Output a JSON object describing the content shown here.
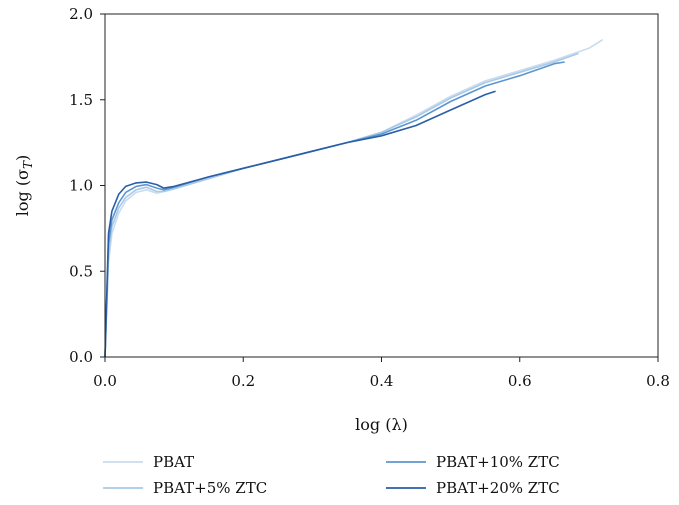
{
  "chart_data": {
    "type": "line",
    "xlabel": "log (λ)",
    "ylabel": "log (σT)",
    "ylabel_main": "log (σ",
    "ylabel_sub": "T",
    "ylabel_close": ")",
    "xlim": [
      0.0,
      0.8
    ],
    "ylim": [
      0.0,
      2.0
    ],
    "x_ticks": [
      0.0,
      0.2,
      0.4,
      0.6,
      0.8
    ],
    "x_tick_labels": [
      "0.0",
      "0.2",
      "0.4",
      "0.6",
      "0.8"
    ],
    "y_ticks": [
      0.0,
      0.5,
      1.0,
      1.5,
      2.0
    ],
    "y_tick_labels": [
      "0.0",
      "0.5",
      "1.0",
      "1.5",
      "2.0"
    ],
    "grid": false,
    "legend_position": "bottom",
    "series": [
      {
        "name": "PBAT",
        "color": "#c9dcef",
        "x": [
          0.0,
          0.005,
          0.01,
          0.02,
          0.03,
          0.045,
          0.06,
          0.075,
          0.085,
          0.1,
          0.15,
          0.2,
          0.25,
          0.3,
          0.35,
          0.4,
          0.45,
          0.5,
          0.55,
          0.6,
          0.65,
          0.7,
          0.72
        ],
        "y": [
          0.0,
          0.55,
          0.72,
          0.84,
          0.91,
          0.96,
          0.975,
          0.955,
          0.965,
          0.98,
          1.04,
          1.1,
          1.15,
          1.2,
          1.25,
          1.31,
          1.41,
          1.52,
          1.61,
          1.67,
          1.73,
          1.8,
          1.85
        ]
      },
      {
        "name": "PBAT+5% ZTC",
        "color": "#a8c9e8",
        "x": [
          0.0,
          0.005,
          0.01,
          0.02,
          0.03,
          0.045,
          0.06,
          0.075,
          0.085,
          0.1,
          0.15,
          0.2,
          0.25,
          0.3,
          0.35,
          0.4,
          0.45,
          0.5,
          0.55,
          0.6,
          0.65,
          0.685
        ],
        "y": [
          0.0,
          0.6,
          0.76,
          0.87,
          0.93,
          0.975,
          0.99,
          0.965,
          0.965,
          0.98,
          1.04,
          1.1,
          1.15,
          1.2,
          1.25,
          1.31,
          1.4,
          1.51,
          1.6,
          1.66,
          1.72,
          1.77
        ]
      },
      {
        "name": "PBAT+10% ZTC",
        "color": "#5d96cf",
        "x": [
          0.0,
          0.005,
          0.01,
          0.02,
          0.03,
          0.045,
          0.06,
          0.075,
          0.085,
          0.1,
          0.15,
          0.2,
          0.25,
          0.3,
          0.35,
          0.4,
          0.45,
          0.5,
          0.55,
          0.6,
          0.65,
          0.665
        ],
        "y": [
          0.0,
          0.66,
          0.8,
          0.9,
          0.96,
          0.995,
          1.005,
          0.985,
          0.975,
          0.99,
          1.05,
          1.1,
          1.15,
          1.2,
          1.25,
          1.3,
          1.38,
          1.49,
          1.58,
          1.64,
          1.71,
          1.72
        ]
      },
      {
        "name": "PBAT+20% ZTC",
        "color": "#2a5ea6",
        "x": [
          0.0,
          0.005,
          0.01,
          0.02,
          0.03,
          0.045,
          0.06,
          0.075,
          0.085,
          0.1,
          0.15,
          0.2,
          0.25,
          0.3,
          0.35,
          0.4,
          0.45,
          0.5,
          0.55,
          0.565
        ],
        "y": [
          0.0,
          0.72,
          0.85,
          0.95,
          0.995,
          1.015,
          1.02,
          1.005,
          0.985,
          0.995,
          1.05,
          1.1,
          1.15,
          1.2,
          1.25,
          1.29,
          1.35,
          1.44,
          1.53,
          1.55
        ]
      }
    ]
  }
}
